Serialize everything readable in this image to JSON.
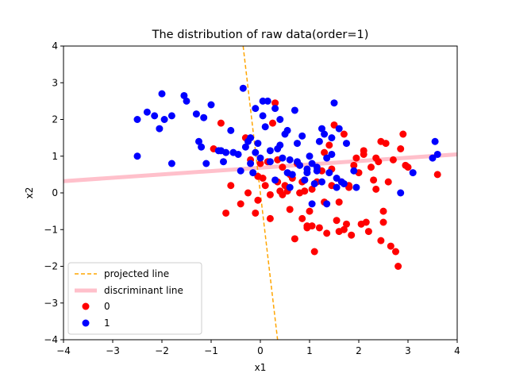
{
  "chart_data": {
    "type": "scatter",
    "title": "The distribution of raw data(order=1)",
    "xlabel": "x1",
    "ylabel": "x2",
    "xlim": [
      -4,
      4
    ],
    "ylim": [
      -4,
      4
    ],
    "xticks": [
      "−4",
      "−3",
      "−2",
      "−1",
      "0",
      "1",
      "2",
      "3",
      "4"
    ],
    "yticks": [
      "−4",
      "−3",
      "−2",
      "−1",
      "0",
      "1",
      "2",
      "3",
      "4"
    ],
    "grid": false,
    "legend_position": "lower-left",
    "lines": [
      {
        "name": "projected line",
        "color": "#ffa500",
        "style": "dashed",
        "points": [
          [
            -0.35,
            4.0
          ],
          [
            0.35,
            -4.0
          ]
        ]
      },
      {
        "name": "discriminant line",
        "color": "#ffc0cb",
        "style": "solid",
        "points": [
          [
            -4.0,
            0.32
          ],
          [
            4.0,
            1.05
          ]
        ]
      }
    ],
    "series": [
      {
        "name": "0",
        "color": "#ff0000",
        "points": [
          [
            -0.8,
            1.9
          ],
          [
            -0.7,
            -0.55
          ],
          [
            -0.6,
            0.2
          ],
          [
            -0.4,
            -0.3
          ],
          [
            -0.3,
            1.5
          ],
          [
            -0.2,
            0.9
          ],
          [
            -0.1,
            -0.55
          ],
          [
            0.0,
            0.8
          ],
          [
            -0.05,
            0.45
          ],
          [
            0.05,
            0.4
          ],
          [
            0.1,
            0.2
          ],
          [
            0.15,
            0.85
          ],
          [
            0.2,
            -0.7
          ],
          [
            0.25,
            1.9
          ],
          [
            0.3,
            2.45
          ],
          [
            0.35,
            0.3
          ],
          [
            0.4,
            0.05
          ],
          [
            0.45,
            0.7
          ],
          [
            0.5,
            0.2
          ],
          [
            0.55,
            0.05
          ],
          [
            0.6,
            -0.45
          ],
          [
            0.65,
            0.4
          ],
          [
            0.7,
            -1.25
          ],
          [
            0.75,
            0.8
          ],
          [
            0.8,
            0.0
          ],
          [
            0.85,
            -0.7
          ],
          [
            0.9,
            0.35
          ],
          [
            0.95,
            -0.9
          ],
          [
            1.0,
            -0.5
          ],
          [
            1.05,
            0.1
          ],
          [
            1.1,
            -1.6
          ],
          [
            1.15,
            0.3
          ],
          [
            1.2,
            -0.95
          ],
          [
            1.25,
            0.6
          ],
          [
            1.3,
            -0.25
          ],
          [
            1.35,
            -1.1
          ],
          [
            1.4,
            1.3
          ],
          [
            1.45,
            0.65
          ],
          [
            1.5,
            1.85
          ],
          [
            1.55,
            -0.75
          ],
          [
            1.6,
            -1.05
          ],
          [
            1.65,
            0.3
          ],
          [
            1.7,
            1.6
          ],
          [
            1.75,
            -0.85
          ],
          [
            1.8,
            0.2
          ],
          [
            1.85,
            -1.15
          ],
          [
            1.9,
            0.75
          ],
          [
            1.95,
            0.95
          ],
          [
            2.0,
            0.55
          ],
          [
            2.05,
            -0.85
          ],
          [
            2.1,
            1.15
          ],
          [
            2.15,
            -0.8
          ],
          [
            2.2,
            -1.05
          ],
          [
            2.25,
            0.7
          ],
          [
            2.3,
            0.35
          ],
          [
            2.35,
            0.1
          ],
          [
            2.4,
            0.85
          ],
          [
            2.45,
            -1.3
          ],
          [
            2.5,
            -0.5
          ],
          [
            2.55,
            1.35
          ],
          [
            2.6,
            0.3
          ],
          [
            2.65,
            -1.45
          ],
          [
            2.7,
            0.9
          ],
          [
            2.75,
            -1.6
          ],
          [
            2.8,
            -2.0
          ],
          [
            2.85,
            1.2
          ],
          [
            2.9,
            1.6
          ],
          [
            2.95,
            0.75
          ],
          [
            3.0,
            0.7
          ],
          [
            3.6,
            0.5
          ],
          [
            -0.95,
            1.2
          ],
          [
            -0.25,
            0.0
          ],
          [
            0.35,
            0.9
          ],
          [
            0.45,
            -0.05
          ],
          [
            0.6,
            0.5
          ],
          [
            0.85,
            0.3
          ],
          [
            1.05,
            -0.9
          ],
          [
            1.3,
            1.1
          ],
          [
            1.6,
            -0.25
          ],
          [
            1.8,
            0.15
          ],
          [
            2.1,
            1.05
          ],
          [
            2.35,
            0.95
          ],
          [
            2.5,
            -0.8
          ],
          [
            0.95,
            -0.95
          ],
          [
            0.2,
            -0.05
          ],
          [
            -0.05,
            -0.2
          ],
          [
            1.7,
            -1.0
          ],
          [
            0.9,
            0.05
          ],
          [
            1.45,
            0.2
          ],
          [
            2.45,
            1.4
          ]
        ]
      },
      {
        "name": "1",
        "color": "#0000ff",
        "points": [
          [
            -2.5,
            2.0
          ],
          [
            -2.3,
            2.2
          ],
          [
            -2.15,
            2.1
          ],
          [
            -2.05,
            1.75
          ],
          [
            -2.0,
            2.7
          ],
          [
            -1.95,
            2.0
          ],
          [
            -1.8,
            0.8
          ],
          [
            -1.8,
            2.1
          ],
          [
            -1.55,
            2.65
          ],
          [
            -1.5,
            2.5
          ],
          [
            -1.3,
            2.15
          ],
          [
            -1.25,
            1.4
          ],
          [
            -1.2,
            1.25
          ],
          [
            -1.15,
            2.05
          ],
          [
            -1.1,
            0.8
          ],
          [
            -1.0,
            2.4
          ],
          [
            -0.85,
            1.15
          ],
          [
            -0.8,
            1.15
          ],
          [
            -0.7,
            1.1
          ],
          [
            -0.6,
            1.7
          ],
          [
            -0.55,
            1.1
          ],
          [
            -0.45,
            1.05
          ],
          [
            -0.4,
            0.6
          ],
          [
            -0.35,
            2.85
          ],
          [
            -0.3,
            1.25
          ],
          [
            -0.25,
            1.4
          ],
          [
            -0.2,
            1.5
          ],
          [
            -0.15,
            0.55
          ],
          [
            -0.1,
            2.3
          ],
          [
            -0.05,
            1.35
          ],
          [
            0.0,
            0.95
          ],
          [
            0.05,
            2.1
          ],
          [
            0.1,
            1.8
          ],
          [
            0.15,
            2.5
          ],
          [
            0.2,
            1.15
          ],
          [
            0.3,
            2.3
          ],
          [
            0.35,
            1.2
          ],
          [
            0.4,
            2.0
          ],
          [
            0.45,
            0.95
          ],
          [
            0.5,
            1.6
          ],
          [
            0.55,
            0.55
          ],
          [
            0.6,
            0.9
          ],
          [
            0.65,
            0.5
          ],
          [
            0.7,
            2.25
          ],
          [
            0.75,
            1.35
          ],
          [
            0.8,
            0.75
          ],
          [
            0.85,
            1.55
          ],
          [
            0.9,
            0.35
          ],
          [
            0.95,
            0.65
          ],
          [
            1.0,
            1.0
          ],
          [
            1.05,
            0.8
          ],
          [
            1.1,
            0.25
          ],
          [
            1.15,
            0.7
          ],
          [
            1.2,
            1.4
          ],
          [
            1.25,
            0.3
          ],
          [
            1.3,
            1.6
          ],
          [
            1.35,
            0.95
          ],
          [
            1.4,
            0.55
          ],
          [
            1.45,
            1.05
          ],
          [
            1.5,
            2.45
          ],
          [
            1.55,
            0.15
          ],
          [
            1.6,
            1.75
          ],
          [
            1.65,
            0.3
          ],
          [
            1.7,
            0.25
          ],
          [
            1.75,
            1.35
          ],
          [
            1.9,
            0.6
          ],
          [
            1.95,
            0.15
          ],
          [
            2.85,
            0.0
          ],
          [
            3.1,
            0.55
          ],
          [
            3.5,
            0.95
          ],
          [
            3.55,
            1.4
          ],
          [
            3.6,
            1.05
          ],
          [
            -2.5,
            1.0
          ],
          [
            -0.75,
            0.85
          ],
          [
            0.2,
            0.85
          ],
          [
            0.55,
            1.7
          ],
          [
            1.05,
            -0.3
          ],
          [
            1.35,
            -0.3
          ],
          [
            1.25,
            1.75
          ],
          [
            0.95,
            0.55
          ],
          [
            -0.1,
            1.1
          ],
          [
            0.4,
            1.3
          ],
          [
            0.75,
            0.85
          ],
          [
            1.15,
            0.6
          ],
          [
            1.55,
            0.4
          ],
          [
            0.3,
            0.35
          ],
          [
            0.05,
            2.5
          ],
          [
            -0.2,
            0.8
          ],
          [
            1.45,
            1.5
          ],
          [
            0.6,
            0.15
          ]
        ]
      }
    ]
  }
}
